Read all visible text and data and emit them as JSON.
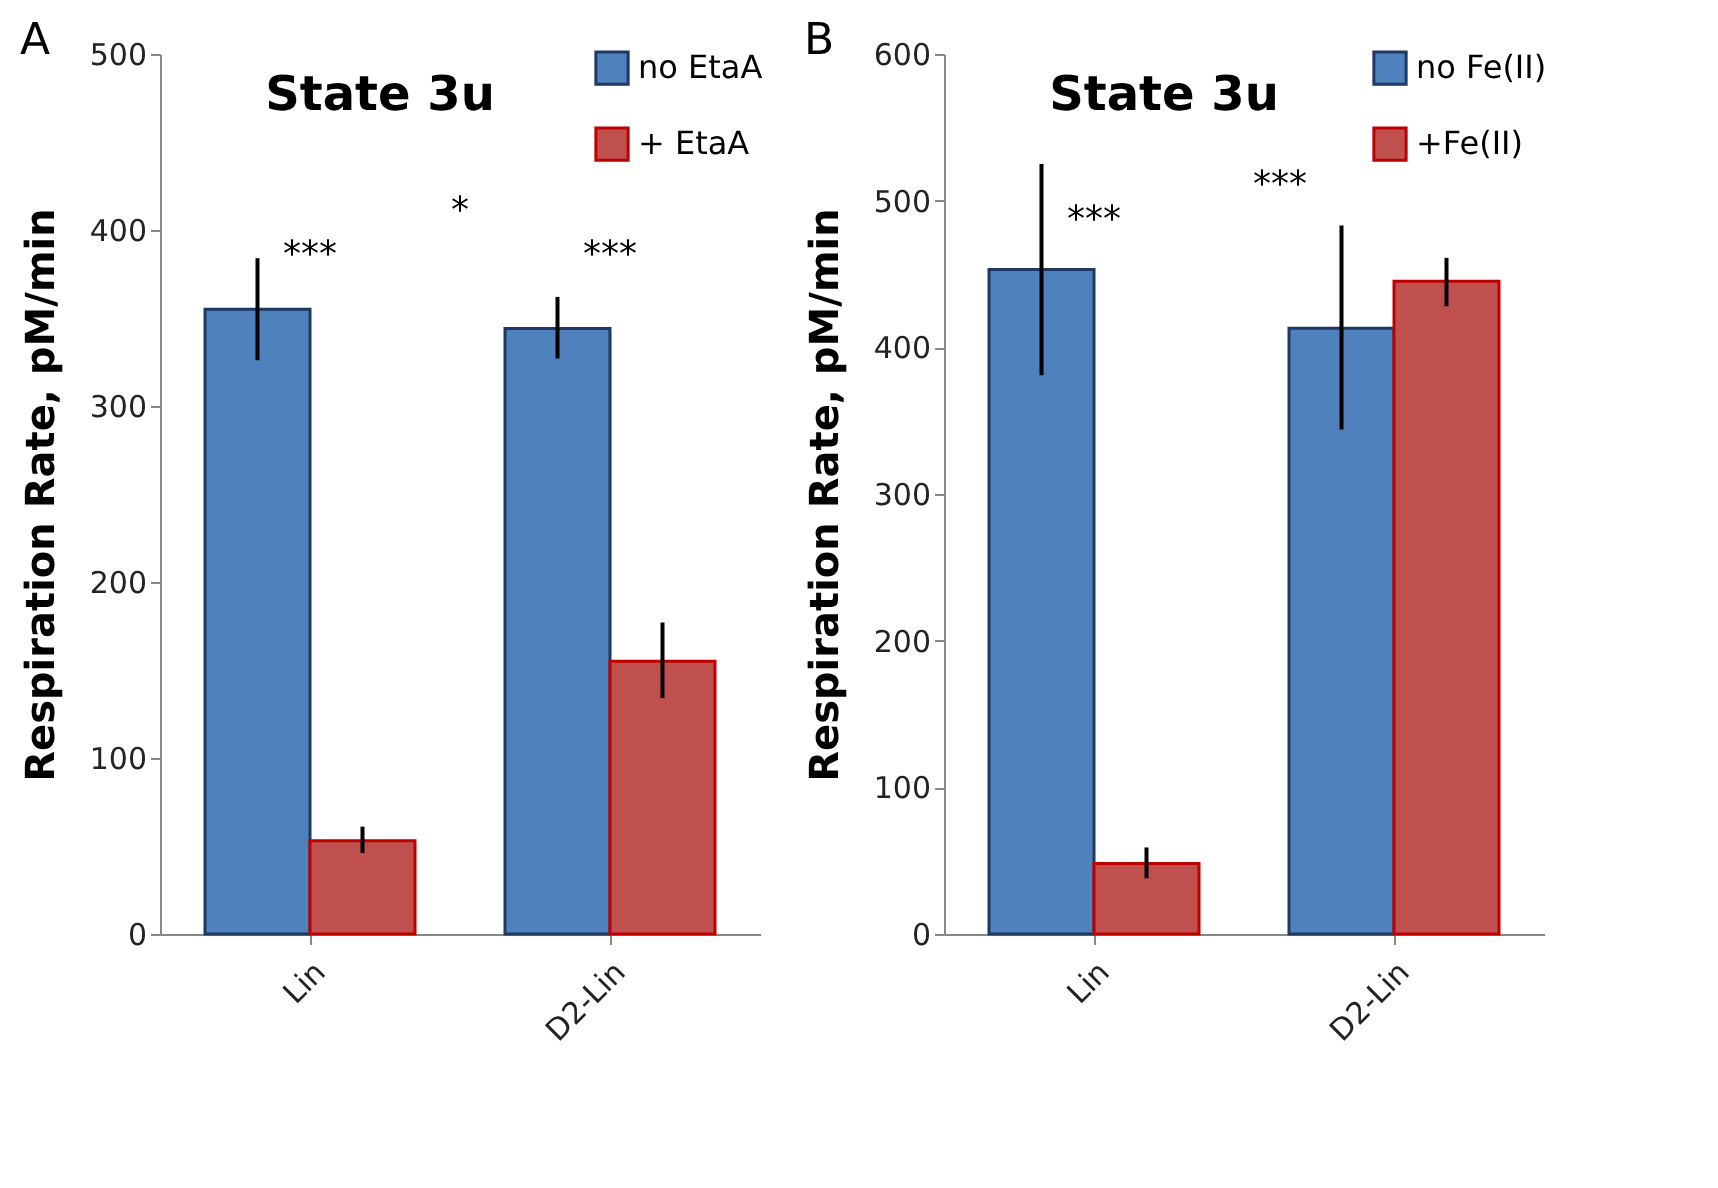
{
  "chart_data": [
    {
      "type": "bar",
      "title": "State 3u",
      "ylabel": "Respiration Rate, pM/min",
      "categories": [
        "Lin",
        "D2-Lin"
      ],
      "series": [
        {
          "name": "no EtaA",
          "color": "#4f81bd",
          "values": [
            355,
            344
          ],
          "errors": [
            [
              326,
              384
            ],
            [
              327,
              362
            ]
          ]
        },
        {
          "name": "+ EtaA",
          "color": "#c0504d",
          "values": [
            53,
            155
          ],
          "errors": [
            [
              46,
              61
            ],
            [
              134,
              177
            ]
          ]
        }
      ],
      "ylim": [
        0,
        500
      ],
      "yticks": [
        0,
        100,
        200,
        300,
        400,
        500
      ],
      "grid": false,
      "legend": "top right",
      "annotations": [
        "A",
        "***",
        "*",
        "***"
      ]
    },
    {
      "type": "bar",
      "title": "State 3u",
      "ylabel": "Respiration Rate, pM/min",
      "categories": [
        "Lin",
        "D2-Lin"
      ],
      "series": [
        {
          "name": "no Fe(II)",
          "color": "#4f81bd",
          "values": [
            453,
            413
          ],
          "errors": [
            [
              381,
              525
            ],
            [
              344,
              483
            ]
          ]
        },
        {
          "name": "+Fe(II)",
          "color": "#c0504d",
          "values": [
            48,
            445
          ],
          "errors": [
            [
              38,
              59
            ],
            [
              428,
              461
            ]
          ]
        }
      ],
      "ylim": [
        0,
        600
      ],
      "yticks": [
        0,
        100,
        200,
        300,
        400,
        500,
        600
      ],
      "grid": false,
      "legend": "top right",
      "annotations": [
        "B",
        "***",
        "***"
      ]
    }
  ]
}
